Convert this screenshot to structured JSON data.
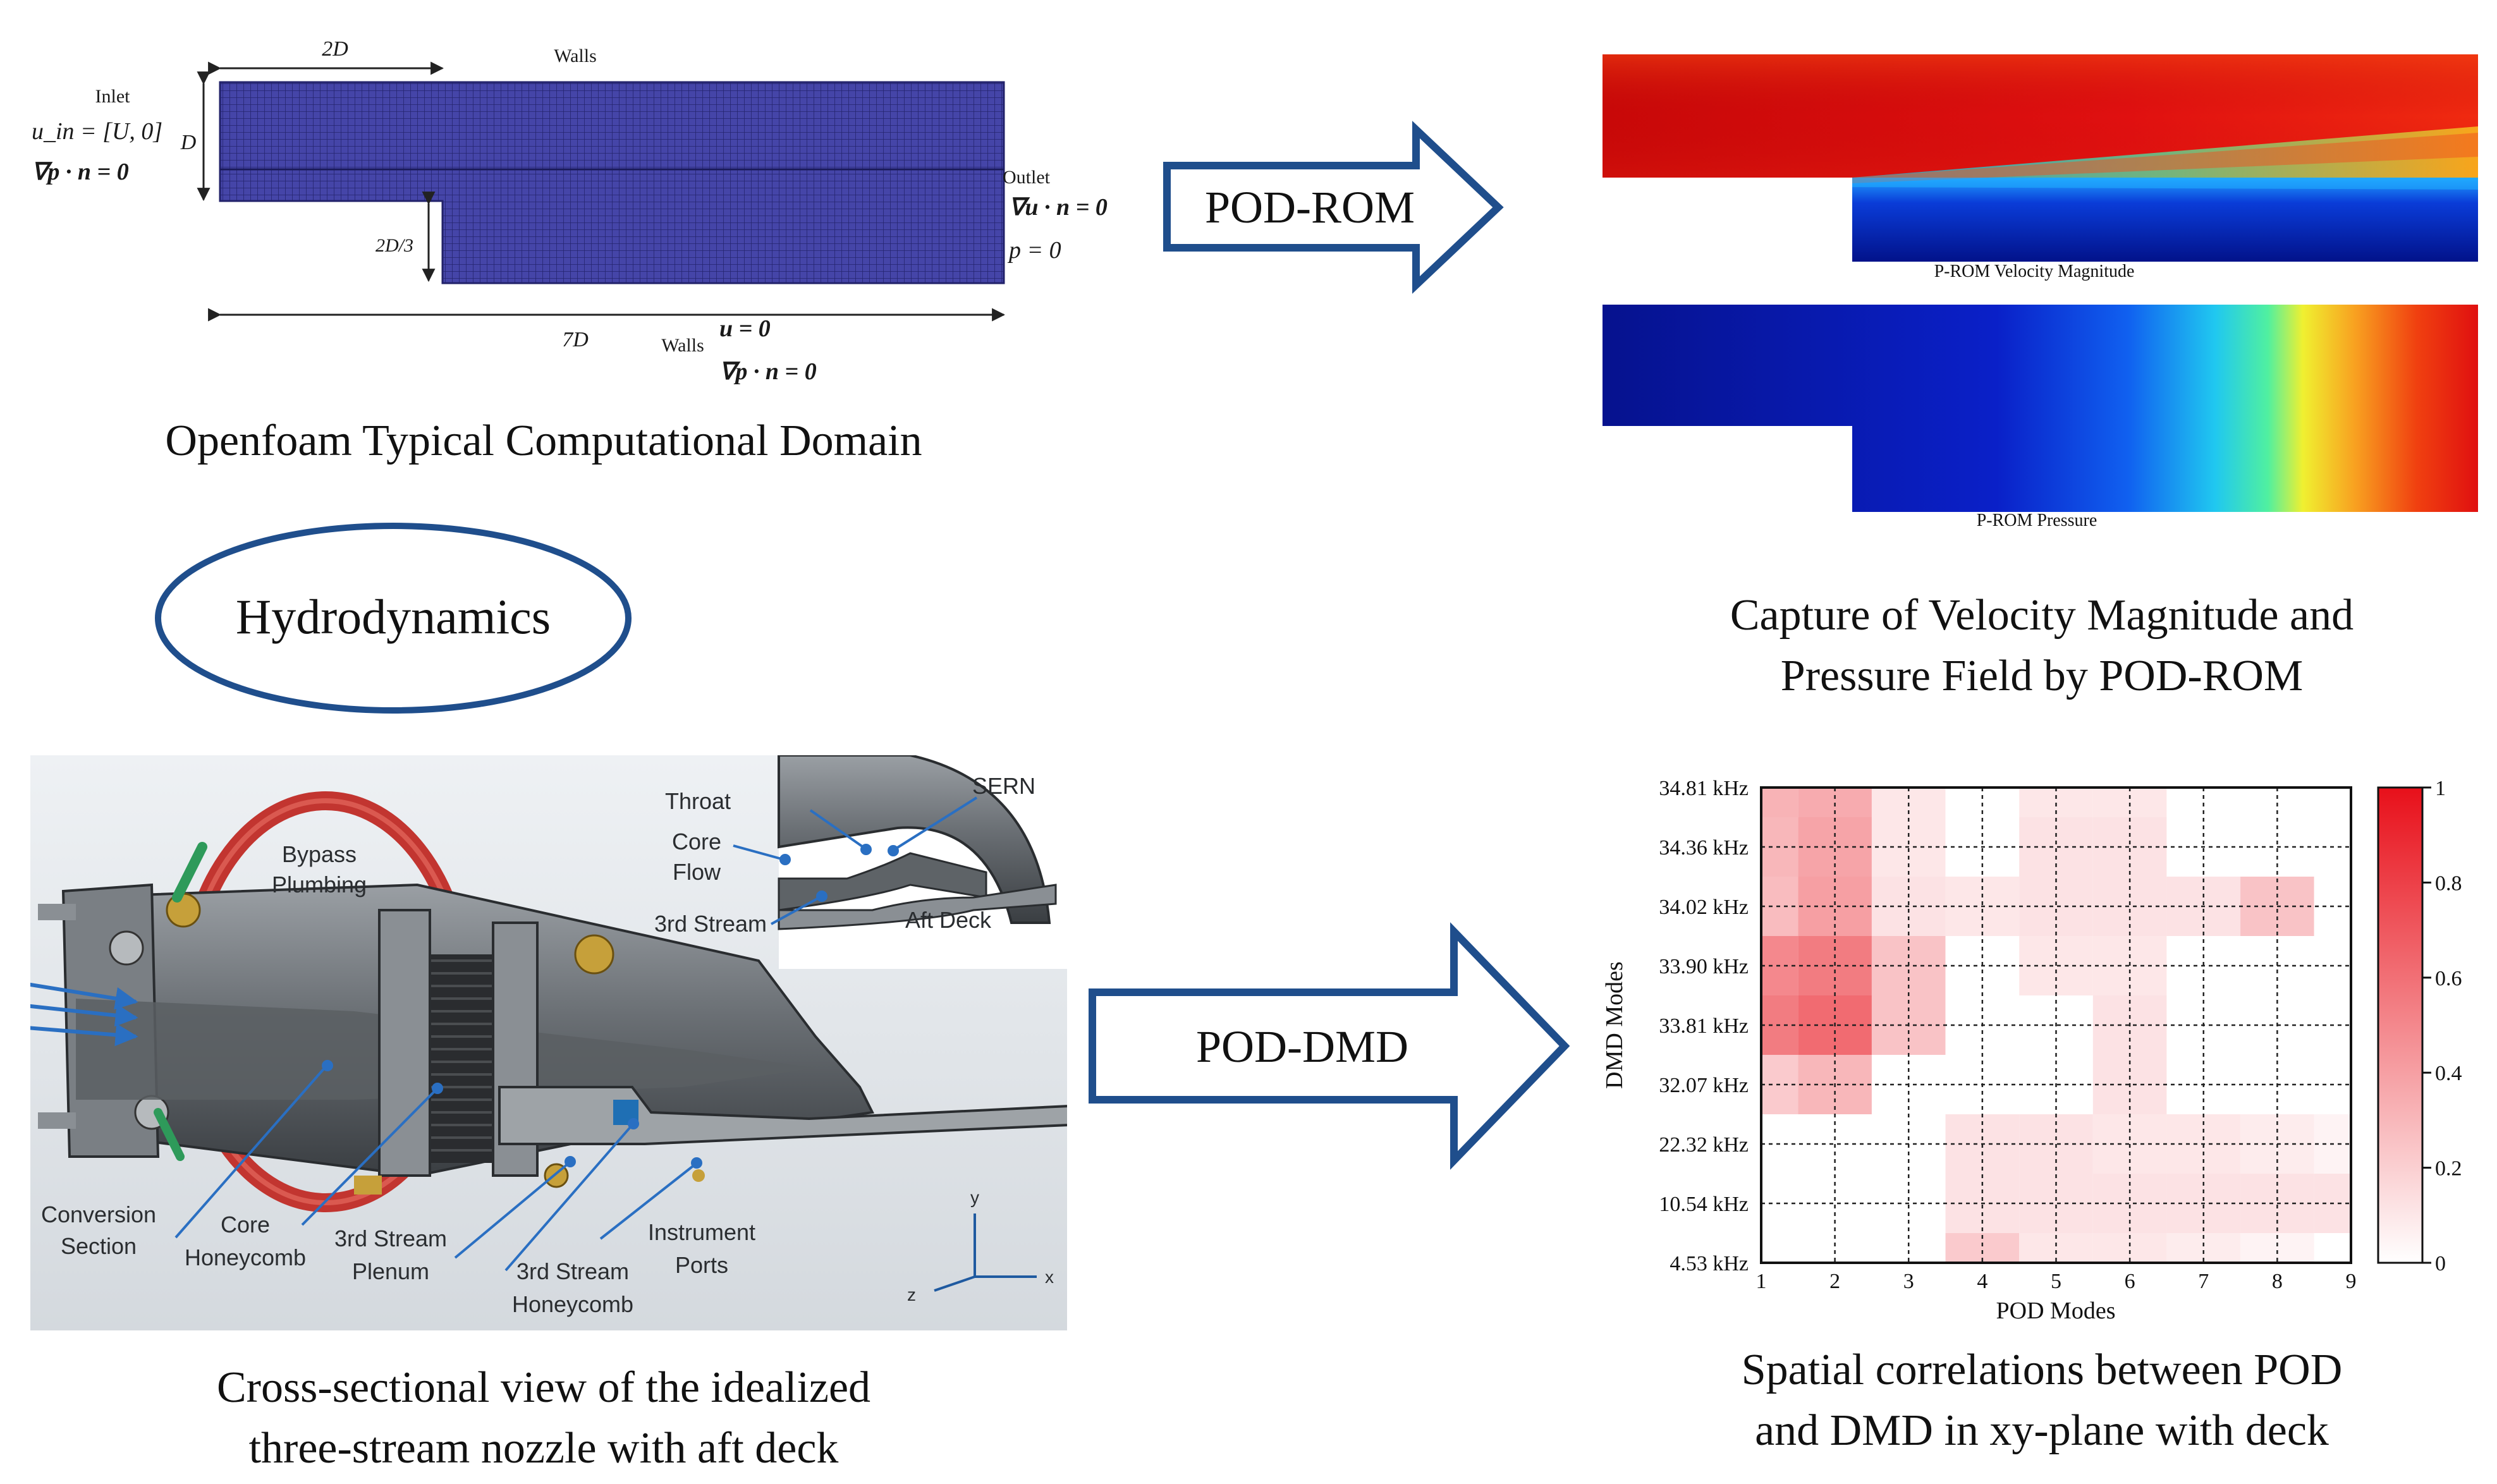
{
  "domain": {
    "labels": {
      "two_d": "2D",
      "walls_top": "Walls",
      "inlet": "Inlet",
      "u_in": "u_in = [U, 0]",
      "grad_p_in": "∇p · n = 0",
      "d": "D",
      "two_d_three": "2D/3",
      "outlet": "Outlet",
      "grad_u_out": "∇u · n = 0",
      "p_zero": "p = 0",
      "seven_d": "7D",
      "walls_bottom": "Walls",
      "u_zero": "u = 0",
      "grad_p_wall": "∇p · n = 0"
    },
    "caption": "Openfoam Typical Computational Domain"
  },
  "arrows": {
    "pod_rom": "POD-ROM",
    "pod_dmd": "POD-DMD"
  },
  "hydro_label": "Hydrodynamics",
  "rom": {
    "velocity_label": "P-ROM Velocity Magnitude",
    "pressure_label": "P-ROM Pressure",
    "caption_line1": "Capture of Velocity Magnitude and",
    "caption_line2": "Pressure Field by POD-ROM"
  },
  "nozzle": {
    "labels": {
      "throat": "Throat",
      "sern": "SERN",
      "core_flow_1": "Core",
      "core_flow_2": "Flow",
      "third_stream_inset": "3rd Stream",
      "aft_deck": "Aft Deck",
      "bypass_1": "Bypass",
      "bypass_2": "Plumbing",
      "conversion_1": "Conversion",
      "conversion_2": "Section",
      "core_honeycomb_1": "Core",
      "core_honeycomb_2": "Honeycomb",
      "plenum_1": "3rd Stream",
      "plenum_2": "Plenum",
      "stream_honeycomb_1": "3rd Stream",
      "stream_honeycomb_2": "Honeycomb",
      "instrument_1": "Instrument",
      "instrument_2": "Ports",
      "axis_x": "x",
      "axis_y": "y",
      "axis_z": "z"
    },
    "caption_line1": "Cross-sectional view of the idealized",
    "caption_line2": "three-stream nozzle with aft deck"
  },
  "chart_data": {
    "type": "heatmap",
    "xlabel": "POD Modes",
    "ylabel": "DMD Modes",
    "x_categories": [
      "1",
      "2",
      "3",
      "4",
      "5",
      "6",
      "7",
      "8",
      "9"
    ],
    "y_categories": [
      "4.53 kHz",
      "10.54 kHz",
      "22.32 kHz",
      "32.07 kHz",
      "33.81 kHz",
      "33.90 kHz",
      "34.02 kHz",
      "34.36 kHz",
      "34.81 kHz"
    ],
    "values": [
      [
        0.0,
        0.0,
        0.0,
        0.22,
        0.1,
        0.1,
        0.08,
        0.05,
        0.0
      ],
      [
        0.0,
        0.0,
        0.0,
        0.12,
        0.12,
        0.12,
        0.12,
        0.12,
        0.12
      ],
      [
        0.0,
        0.0,
        0.0,
        0.12,
        0.12,
        0.1,
        0.1,
        0.08,
        0.05
      ],
      [
        0.22,
        0.3,
        0.0,
        0.0,
        0.0,
        0.12,
        0.0,
        0.0,
        0.0
      ],
      [
        0.55,
        0.62,
        0.25,
        0.0,
        0.0,
        0.12,
        0.0,
        0.0,
        0.0
      ],
      [
        0.5,
        0.55,
        0.25,
        0.0,
        0.1,
        0.1,
        0.0,
        0.0,
        0.0
      ],
      [
        0.28,
        0.4,
        0.12,
        0.1,
        0.12,
        0.12,
        0.12,
        0.25,
        0.0
      ],
      [
        0.3,
        0.38,
        0.1,
        0.0,
        0.12,
        0.12,
        0.0,
        0.0,
        0.0
      ],
      [
        0.32,
        0.35,
        0.1,
        0.0,
        0.1,
        0.1,
        0.0,
        0.0,
        0.0
      ]
    ],
    "colorbar": {
      "range": [
        0,
        1
      ],
      "ticks": [
        "0",
        "0.2",
        "0.4",
        "0.6",
        "0.8",
        "1"
      ]
    },
    "caption_line1": "Spatial correlations between POD",
    "caption_line2": "and DMD in xy-plane with deck"
  },
  "colors": {
    "mesh": "#3b3b9c",
    "arrow": "#1f4e8c",
    "heat_max": "#e8101a",
    "leader": "#1f6fb4"
  }
}
